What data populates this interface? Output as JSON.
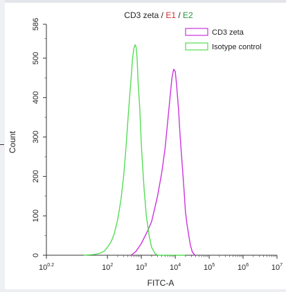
{
  "chart_data": {
    "type": "area",
    "title_parts": [
      {
        "text": "CD3 zeta",
        "color": "#222222"
      },
      {
        "text": " / ",
        "color": "#222222"
      },
      {
        "text": "E1",
        "color": "#d12a2a"
      },
      {
        "text": " / ",
        "color": "#222222"
      },
      {
        "text": "E2",
        "color": "#1f9a3a"
      }
    ],
    "xlabel": "FITC-A",
    "ylabel": "Count",
    "x_scale": "log",
    "xlim": [
      1.585,
      10000000
    ],
    "ylim": [
      0,
      586
    ],
    "x_tick_labels": [
      {
        "base": "10",
        "exp": "0.2",
        "value": 1.585
      },
      {
        "base": "10",
        "exp": "2",
        "value": 100
      },
      {
        "base": "10",
        "exp": "3",
        "value": 1000
      },
      {
        "base": "10",
        "exp": "4",
        "value": 10000
      },
      {
        "base": "10",
        "exp": "5",
        "value": 100000
      },
      {
        "base": "10",
        "exp": "6",
        "value": 1000000
      },
      {
        "base": "10",
        "exp": "7",
        "value": 10000000
      }
    ],
    "y_ticks": [
      {
        "label": "0",
        "value": 0
      },
      {
        "label": "100",
        "value": 100
      },
      {
        "label": "200",
        "value": 200
      },
      {
        "label": "300",
        "value": 300
      },
      {
        "label": "400",
        "value": 400
      },
      {
        "label": "500",
        "value": 500
      },
      {
        "label": "586",
        "value": 586
      }
    ],
    "grid": false,
    "legend_position": "top-right",
    "series": [
      {
        "name": "CD3 zeta",
        "color": "#cc33dd",
        "points": [
          [
            500,
            0
          ],
          [
            700,
            10
          ],
          [
            1000,
            30
          ],
          [
            1500,
            60
          ],
          [
            2000,
            85
          ],
          [
            3000,
            150
          ],
          [
            4000,
            210
          ],
          [
            5000,
            270
          ],
          [
            6000,
            340
          ],
          [
            7000,
            400
          ],
          [
            8000,
            450
          ],
          [
            9000,
            472
          ],
          [
            10000,
            466
          ],
          [
            11000,
            430
          ],
          [
            12500,
            370
          ],
          [
            14000,
            300
          ],
          [
            16000,
            230
          ],
          [
            18000,
            170
          ],
          [
            20000,
            110
          ],
          [
            22000,
            80
          ],
          [
            25000,
            50
          ],
          [
            28000,
            25
          ],
          [
            32000,
            8
          ],
          [
            38000,
            0
          ]
        ]
      },
      {
        "name": "Isotype control",
        "color": "#55dd55",
        "points": [
          [
            20,
            0
          ],
          [
            40,
            2
          ],
          [
            60,
            5
          ],
          [
            80,
            10
          ],
          [
            100,
            20
          ],
          [
            130,
            35
          ],
          [
            160,
            55
          ],
          [
            200,
            90
          ],
          [
            250,
            140
          ],
          [
            300,
            200
          ],
          [
            350,
            270
          ],
          [
            400,
            340
          ],
          [
            450,
            400
          ],
          [
            500,
            450
          ],
          [
            550,
            500
          ],
          [
            600,
            525
          ],
          [
            650,
            534
          ],
          [
            700,
            528
          ],
          [
            750,
            500
          ],
          [
            800,
            440
          ],
          [
            900,
            370
          ],
          [
            1000,
            280
          ],
          [
            1200,
            170
          ],
          [
            1400,
            100
          ],
          [
            1700,
            50
          ],
          [
            2000,
            20
          ],
          [
            2500,
            5
          ],
          [
            3000,
            0
          ],
          [
            10000,
            0
          ],
          [
            20000,
            0
          ]
        ]
      }
    ]
  }
}
